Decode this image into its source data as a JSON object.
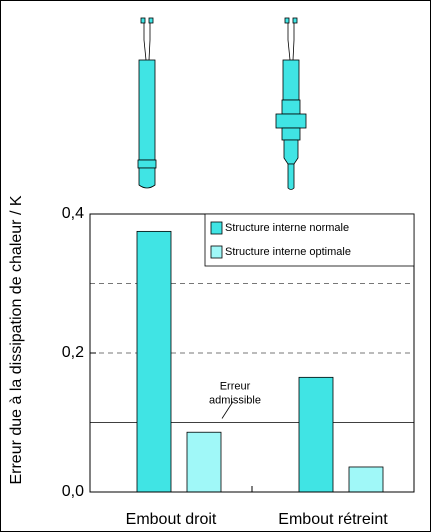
{
  "chart_data": {
    "type": "bar",
    "y_label": "Erreur due à la dissipation de chaleur / K",
    "categories": [
      "Embout droit",
      "Embout rétreint"
    ],
    "series": [
      {
        "name": "Structure interne normale",
        "color": "#40e4e4",
        "values": [
          0.375,
          0.165
        ]
      },
      {
        "name": "Structure interne optimale",
        "color": "#a0f8f8",
        "values": [
          0.086,
          0.036
        ]
      }
    ],
    "ylim": [
      0,
      0.4
    ],
    "yticks": [
      {
        "value": 0,
        "label": "0,0"
      },
      {
        "value": 0.2,
        "label": "0,2"
      },
      {
        "value": 0.4,
        "label": "0,4"
      }
    ],
    "dashed_lines": [
      0.2,
      0.3
    ],
    "limit_line": {
      "value": 0.1,
      "label": [
        "Erreur",
        "admissible"
      ]
    },
    "legend": "top-right"
  }
}
